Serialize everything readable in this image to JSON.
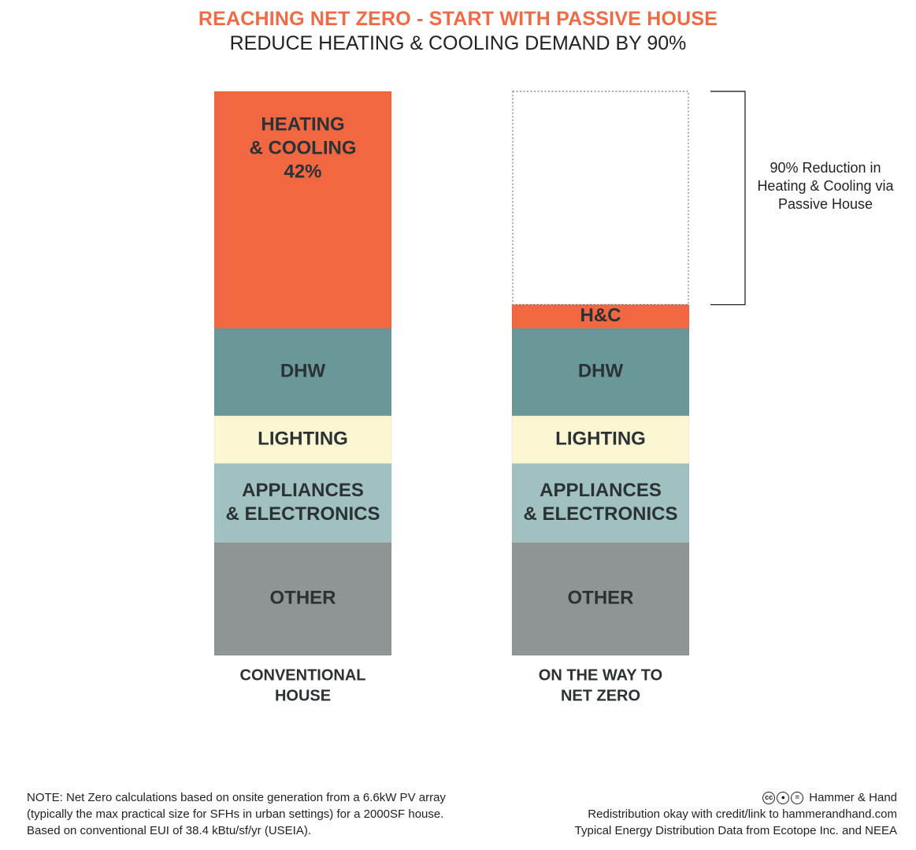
{
  "header": {
    "title": "REACHING NET ZERO - START WITH PASSIVE HOUSE",
    "subtitle": "REDUCE HEATING & COOLING DEMAND BY 90%"
  },
  "chart_data": {
    "type": "bar",
    "stacked": true,
    "categories": [
      "CONVENTIONAL HOUSE",
      "ON THE WAY TO NET ZERO"
    ],
    "category_label_lines": [
      [
        "CONVENTIONAL",
        "HOUSE"
      ],
      [
        "ON THE WAY TO",
        "NET ZERO"
      ]
    ],
    "series": [
      {
        "name": "OTHER",
        "color": "#8f9595",
        "values": [
          20,
          20
        ],
        "label_lines": [
          [
            "OTHER"
          ],
          [
            "OTHER"
          ]
        ]
      },
      {
        "name": "APPLIANCES & ELECTRONICS",
        "color": "#a1c1c0",
        "values": [
          14,
          14
        ],
        "label_lines": [
          [
            "APPLIANCES",
            "& ELECTRONICS"
          ],
          [
            "APPLIANCES",
            "& ELECTRONICS"
          ]
        ]
      },
      {
        "name": "LIGHTING",
        "color": "#fcf7d3",
        "values": [
          8.5,
          8.5
        ],
        "label_lines": [
          [
            "LIGHTING"
          ],
          [
            "LIGHTING"
          ]
        ]
      },
      {
        "name": "DHW",
        "color": "#6a9899",
        "values": [
          15.5,
          15.5
        ],
        "label_lines": [
          [
            "DHW"
          ],
          [
            "DHW"
          ]
        ]
      },
      {
        "name": "HEATING & COOLING",
        "color": "#f06742",
        "values": [
          42,
          4.2
        ],
        "label_lines": [
          [
            "HEATING",
            "& COOLING",
            "42%"
          ],
          [
            "H&C"
          ]
        ]
      }
    ],
    "removed_segment": {
      "category": "ON THE WAY TO NET ZERO",
      "value": 37.8
    },
    "annotation": {
      "lines": [
        "90% Reduction in",
        "Heating & Cooling via",
        "Passive House"
      ]
    },
    "ylim": [
      0,
      100
    ],
    "axes_visible": false,
    "grid": false
  },
  "footer": {
    "note_lines": [
      "NOTE: Net Zero calculations based on onsite generation from a 6.6kW PV array",
      "(typically the max practical size for SFHs in urban settings) for a 2000SF house.",
      "Based on conventional EUI of 38.4 kBtu/sf/yr (USEIA)."
    ],
    "brand": "Hammer & Hand",
    "credit_lines": [
      "Redistribution okay with credit/link to hammerandhand.com",
      "Typical Energy Distribution Data from Ecotope Inc. and NEEA"
    ],
    "cc_icons": [
      "creative-commons-icon",
      "attribution-icon",
      "no-derivatives-icon"
    ]
  }
}
